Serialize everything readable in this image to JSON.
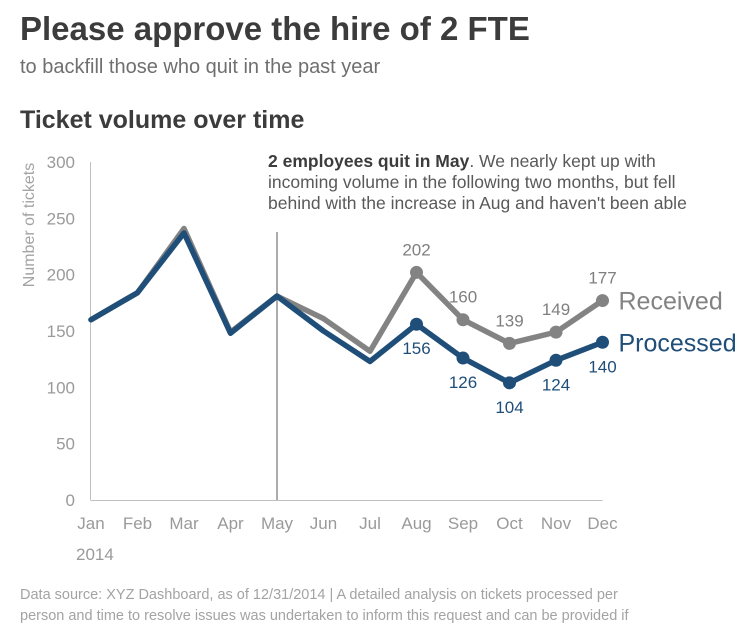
{
  "header": {
    "title": "Please approve the hire of 2 FTE",
    "subtitle": "to backfill those who quit in the past year"
  },
  "annotation": {
    "lead": "2 employees quit in May",
    "lines": [
      ". We nearly kept up with",
      "incoming volume in the following two months, but fell",
      "behind with the increase in Aug and haven't been able"
    ]
  },
  "footnote": {
    "lines": [
      "Data source: XYZ Dashboard, as of 12/31/2014  |  A detailed analysis on tickets processed per",
      "person and time to resolve issues was undertaken to inform this request and can be provided if"
    ]
  },
  "chart_data": {
    "type": "line",
    "title": "Ticket volume over time",
    "ylabel": "Number of tickets",
    "year_label": "2014",
    "categories": [
      "Jan",
      "Feb",
      "Mar",
      "Apr",
      "May",
      "Jun",
      "Jul",
      "Aug",
      "Sep",
      "Oct",
      "Nov",
      "Dec"
    ],
    "ylim": [
      0,
      300
    ],
    "yticks": [
      0,
      50,
      100,
      150,
      200,
      250,
      300
    ],
    "grid": false,
    "marker_line_at": "May",
    "series": [
      {
        "name": "Received",
        "color": "#838383",
        "values": [
          160,
          184,
          241,
          149,
          181,
          161,
          132,
          202,
          160,
          139,
          149,
          177
        ],
        "labeled_from": "Aug"
      },
      {
        "name": "Processed",
        "color": "#1f4e79",
        "values": [
          160,
          184,
          237,
          148,
          181,
          150,
          123,
          156,
          126,
          104,
          124,
          140
        ],
        "labeled_from": "Aug"
      }
    ]
  }
}
